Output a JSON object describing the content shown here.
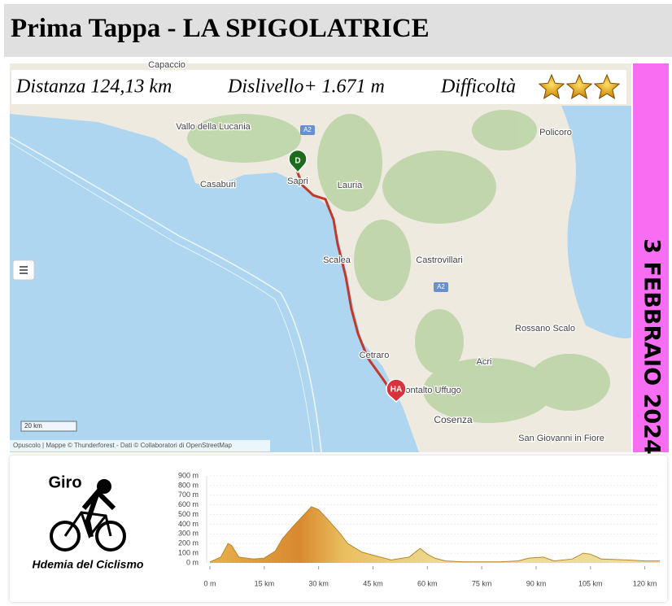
{
  "header": {
    "title": "Prima Tappa - LA SPIGOLATRICE"
  },
  "info": {
    "distance": "Distanza 124,13 km",
    "climb": "Dislivello+ 1.671 m",
    "difficulty": "Difficoltà",
    "difficulty_stars": 3
  },
  "date": "3 FEBBRAIO 2024",
  "map": {
    "labels": [
      "Capaccio",
      "Vallo della Lucania",
      "Policoro",
      "Casaburi",
      "Sapri",
      "Lauria",
      "Scalea",
      "Castrovillari",
      "Rossano Scalo",
      "Acri",
      "Cetraro",
      "Montalto Uffugo",
      "Cosenza",
      "San Giovanni in Fiore",
      "A2",
      "A2"
    ],
    "start_marker": "D",
    "finish_marker": "HA",
    "scale": "20 km",
    "attribution": "Opuscolo | Mappe © Thunderforest - Dati © Collaboratori di OpenStreetMap"
  },
  "logo": {
    "title": "Giro",
    "subtitle": "Hdemia del Ciclismo"
  },
  "profile": {
    "x": [
      0,
      3,
      5,
      6,
      8,
      12,
      15,
      18,
      20,
      23,
      26,
      28,
      30,
      33,
      36,
      38,
      42,
      45,
      50,
      55,
      57,
      58,
      60,
      62,
      65,
      70,
      80,
      85,
      88,
      92,
      95,
      100,
      103,
      105,
      108,
      115,
      120,
      124.13
    ],
    "values": [
      10,
      60,
      200,
      180,
      60,
      40,
      50,
      120,
      250,
      380,
      500,
      580,
      550,
      430,
      300,
      200,
      110,
      80,
      30,
      60,
      120,
      150,
      90,
      50,
      20,
      10,
      10,
      20,
      50,
      60,
      20,
      40,
      100,
      90,
      40,
      30,
      20,
      20
    ],
    "xlim": [
      0,
      124.13
    ],
    "ylim": [
      0,
      900
    ],
    "yticks": [
      {
        "value": 0,
        "label": "0 m"
      },
      {
        "value": 100,
        "label": "100 m"
      },
      {
        "value": 200,
        "label": "200 m"
      },
      {
        "value": 300,
        "label": "300 m"
      },
      {
        "value": 400,
        "label": "400 m"
      },
      {
        "value": 500,
        "label": "500 m"
      },
      {
        "value": 600,
        "label": "600 m"
      },
      {
        "value": 700,
        "label": "700 m"
      },
      {
        "value": 800,
        "label": "800 m"
      },
      {
        "value": 900,
        "label": "900 m"
      }
    ],
    "xticks": [
      {
        "value": 0,
        "label": "0 m"
      },
      {
        "value": 15,
        "label": "15 km"
      },
      {
        "value": 30,
        "label": "30 km"
      },
      {
        "value": 45,
        "label": "45 km"
      },
      {
        "value": 60,
        "label": "60 km"
      },
      {
        "value": 75,
        "label": "75 km"
      },
      {
        "value": 90,
        "label": "90 km"
      },
      {
        "value": 105,
        "label": "105 km"
      },
      {
        "value": 120,
        "label": "120 km"
      }
    ]
  }
}
